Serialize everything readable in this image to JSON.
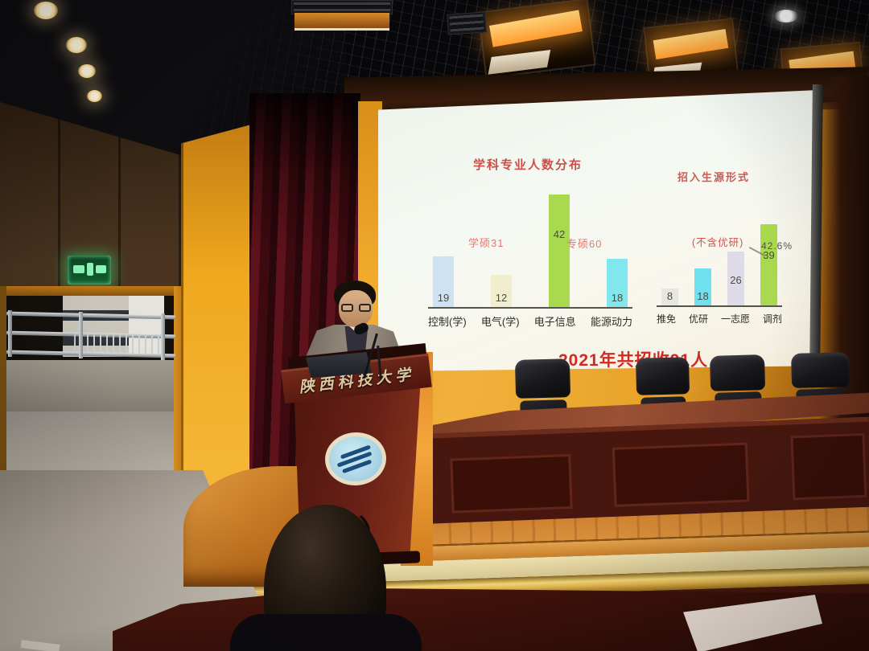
{
  "scene": {
    "university_name": "陕西科技大学"
  },
  "slide": {
    "footer": "2021年共招收91人"
  },
  "chart_data": [
    {
      "type": "bar",
      "title": "学科专业人数分布",
      "categories": [
        "控制(学)",
        "电气(学)",
        "电子信息",
        "能源动力"
      ],
      "values": [
        19,
        12,
        42,
        18
      ],
      "bar_colors": [
        "#cfe2f1",
        "#f1eecd",
        "#a9d94e",
        "#82e6ee"
      ],
      "annotations": [
        "学硕31",
        "专硕60"
      ],
      "title_color": "#c94f4a",
      "ylim": [
        0,
        45
      ],
      "grid": false,
      "legend": "none",
      "value_labels": true
    },
    {
      "type": "bar",
      "title": "招入生源形式",
      "categories": [
        "推免",
        "优研",
        "一志愿",
        "调剂"
      ],
      "values": [
        8,
        18,
        26,
        39
      ],
      "bar_colors": [
        "#e6e6e2",
        "#6fe0ef",
        "#dedbe9",
        "#a9d94e"
      ],
      "annotations": [
        "(不含优研)",
        "42.6%"
      ],
      "title_color": "#cc5a55",
      "ylim": [
        0,
        45
      ],
      "grid": false,
      "legend": "none",
      "value_labels": true
    }
  ],
  "colors": {
    "slide_footer_red": "#d22a22",
    "wall_amber": "#e8a227",
    "curtain_maroon": "#4c0f15",
    "table_mahogany": "#47170f",
    "exit_sign_green": "#8af5b4"
  }
}
